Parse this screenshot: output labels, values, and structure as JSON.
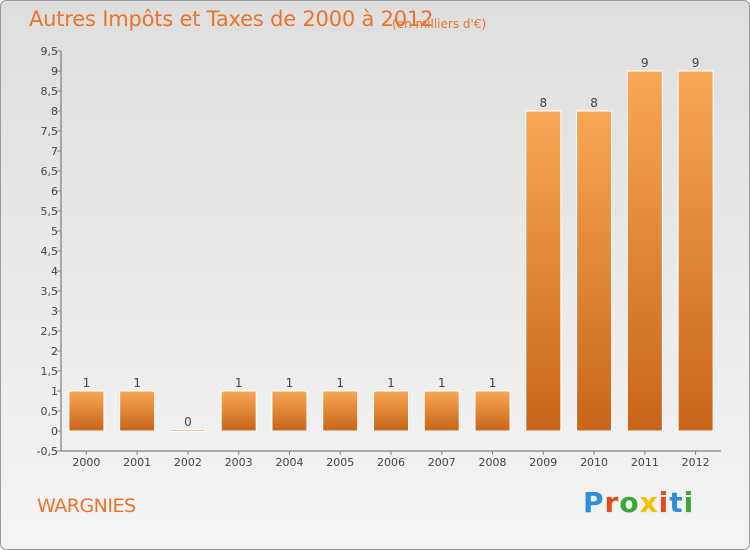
{
  "header": {
    "title": "Autres Impôts et Taxes de 2000 à 2012",
    "unit": "(en milliers d'€)"
  },
  "footer": {
    "commune": "WARGNIES",
    "logo": [
      "P",
      "r",
      "o",
      "x",
      "i",
      "t",
      "i"
    ],
    "logo_colors": [
      "#2f8fd8",
      "#e84a1a",
      "#39a935",
      "#f0c200",
      "#e84a1a",
      "#2f8fd8",
      "#39a935"
    ]
  },
  "colors": {
    "bar_light": "#f7a855",
    "bar_dark": "#c96418",
    "axis": "#666666",
    "grid_tick": "#888888",
    "text_accent": "#e8742a"
  },
  "chart_data": {
    "type": "bar",
    "title": "Autres Impôts et Taxes de 2000 à 2012",
    "subtitle": "(en milliers d'€)",
    "categories": [
      "2000",
      "2001",
      "2002",
      "2003",
      "2004",
      "2005",
      "2006",
      "2007",
      "2008",
      "2009",
      "2010",
      "2011",
      "2012"
    ],
    "values": [
      1,
      1,
      0,
      1,
      1,
      1,
      1,
      1,
      1,
      8,
      8,
      9,
      9
    ],
    "data_labels": [
      "1",
      "1",
      "0",
      "1",
      "1",
      "1",
      "1",
      "1",
      "1",
      "8",
      "8",
      "9",
      "9"
    ],
    "ylim": [
      -0.5,
      9.5
    ],
    "yticks": [
      "-0,5",
      "0",
      "0,5",
      "1",
      "1,5",
      "2",
      "2,5",
      "3",
      "3,5",
      "4",
      "4,5",
      "5",
      "5,5",
      "6",
      "6,5",
      "7",
      "7,5",
      "8",
      "8,5",
      "9",
      "9,5"
    ],
    "ytick_values": [
      -0.5,
      0,
      0.5,
      1,
      1.5,
      2,
      2.5,
      3,
      3.5,
      4,
      4.5,
      5,
      5.5,
      6,
      6.5,
      7,
      7.5,
      8,
      8.5,
      9,
      9.5
    ],
    "grid": false,
    "legend": "none"
  }
}
